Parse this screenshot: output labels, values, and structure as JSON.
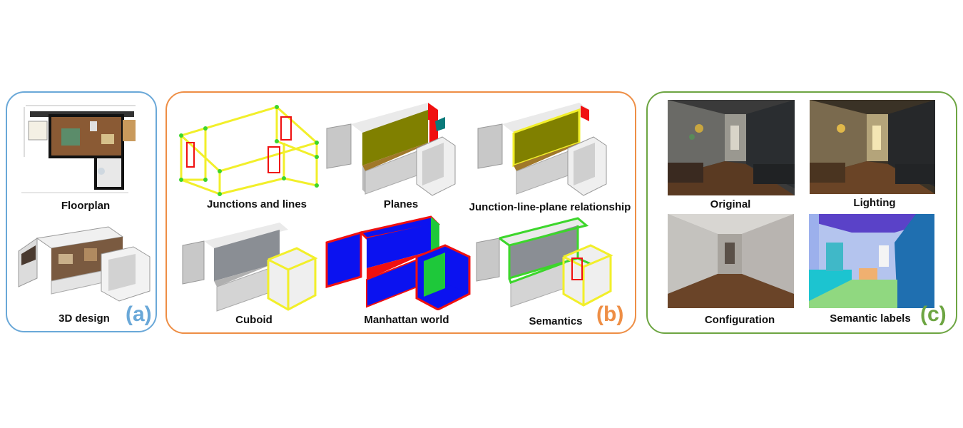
{
  "colors": {
    "panel_a": "#6aa8d8",
    "panel_b": "#ee8e45",
    "panel_c": "#6da542",
    "line_yellow": "#f2ef2a",
    "junction_green": "#3cd62b",
    "plane_olive": "#808000",
    "mw_blue": "#0b12f0",
    "mw_red": "#f01010",
    "mw_green": "#1ec83a"
  },
  "panel_a": {
    "tag": "(a)",
    "items": [
      {
        "caption": "Floorplan",
        "icon": "floorplan-image"
      },
      {
        "caption": "3D design",
        "icon": "3d-design-image"
      }
    ]
  },
  "panel_b": {
    "tag": "(b)",
    "items": [
      {
        "caption": "Junctions and lines",
        "icon": "wireframe-image"
      },
      {
        "caption": "Planes",
        "icon": "planes-image"
      },
      {
        "caption": "Junction-line-plane relationship",
        "icon": "relationship-image"
      },
      {
        "caption": "Cuboid",
        "icon": "cuboid-image"
      },
      {
        "caption": "Manhattan world",
        "icon": "manhattan-image"
      },
      {
        "caption": "Semantics",
        "icon": "semantics-image"
      }
    ]
  },
  "panel_c": {
    "tag": "(c)",
    "items": [
      {
        "caption": "Original",
        "icon": "original-render"
      },
      {
        "caption": "Lighting",
        "icon": "lighting-render"
      },
      {
        "caption": "Configuration",
        "icon": "configuration-render"
      },
      {
        "caption": "Semantic labels",
        "icon": "semantic-labels-render"
      }
    ]
  }
}
